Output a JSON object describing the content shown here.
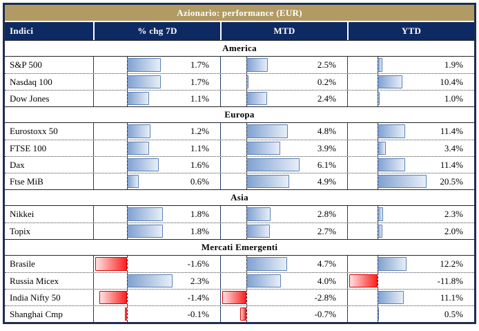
{
  "title": "Azionario: performance (EUR)",
  "columns": [
    "Indici",
    "% chg 7D",
    "MTD",
    "YTD"
  ],
  "colors": {
    "title_bg": "#b29a63",
    "header_bg": "#0e2a62",
    "header_text": "#ffffff",
    "positive_bar": "#7fa1d1",
    "positive_bar_border": "#5a81b5",
    "negative_bar": "#fb2020",
    "negative_bar_border": "#dd0000",
    "column_border": "#203864",
    "outer_border": "#1e2c4e"
  },
  "chart_data": {
    "type": "table",
    "title": "Azionario: performance (EUR)",
    "columns": [
      "Indici",
      "% chg 7D",
      "MTD",
      "YTD"
    ],
    "value_columns": [
      "chg7d",
      "mtd",
      "ytd"
    ],
    "sections": [
      {
        "name": "America",
        "rows": [
          {
            "label": "S&P 500",
            "chg7d": 1.7,
            "mtd": 2.5,
            "ytd": 1.9
          },
          {
            "label": "Nasdaq 100",
            "chg7d": 1.7,
            "mtd": 0.2,
            "ytd": 10.4
          },
          {
            "label": "Dow Jones",
            "chg7d": 1.1,
            "mtd": 2.4,
            "ytd": 1.0
          }
        ]
      },
      {
        "name": "Europa",
        "rows": [
          {
            "label": "Eurostoxx 50",
            "chg7d": 1.2,
            "mtd": 4.8,
            "ytd": 11.4
          },
          {
            "label": "FTSE 100",
            "chg7d": 1.1,
            "mtd": 3.9,
            "ytd": 3.4
          },
          {
            "label": "Dax",
            "chg7d": 1.6,
            "mtd": 6.1,
            "ytd": 11.4
          },
          {
            "label": "Ftse MiB",
            "chg7d": 0.6,
            "mtd": 4.9,
            "ytd": 20.5
          }
        ]
      },
      {
        "name": "Asia",
        "rows": [
          {
            "label": "Nikkei",
            "chg7d": 1.8,
            "mtd": 2.8,
            "ytd": 2.3
          },
          {
            "label": "Topix",
            "chg7d": 1.8,
            "mtd": 2.7,
            "ytd": 2.0
          }
        ]
      },
      {
        "name": "Mercati Emergenti",
        "rows": [
          {
            "label": "Brasile",
            "chg7d": -1.6,
            "mtd": 4.7,
            "ytd": 12.2
          },
          {
            "label": "Russia Micex",
            "chg7d": 2.3,
            "mtd": 4.0,
            "ytd": -11.8
          },
          {
            "label": "India Nifty 50",
            "chg7d": -1.4,
            "mtd": -2.8,
            "ytd": 11.1
          },
          {
            "label": "Shanghai Cmp",
            "chg7d": -0.1,
            "mtd": -0.7,
            "ytd": 0.5
          }
        ]
      }
    ]
  }
}
